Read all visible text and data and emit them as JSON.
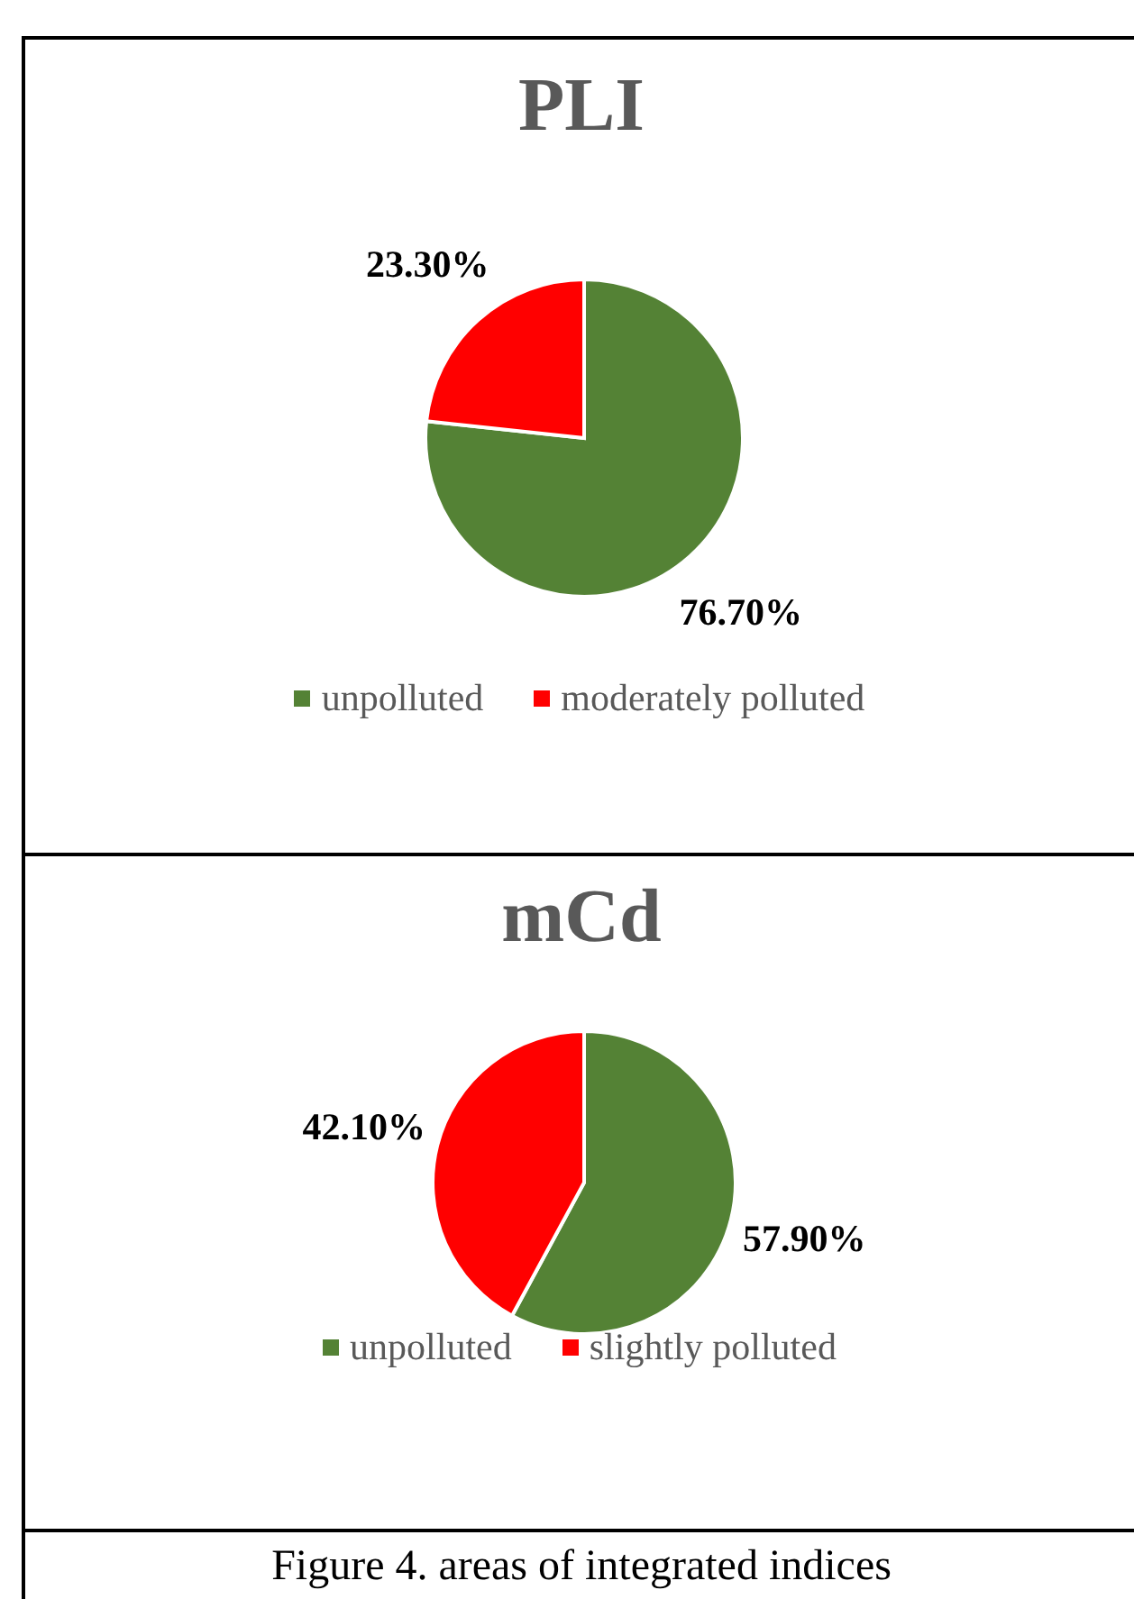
{
  "chart_data": [
    {
      "type": "pie",
      "title": "PLI",
      "categories": [
        "unpolluted",
        "moderately polluted"
      ],
      "values": [
        76.7,
        23.3
      ],
      "colors": [
        "#548235",
        "#ff0000"
      ],
      "value_labels": [
        "76.70%",
        "23.30%"
      ],
      "legend": "bottom"
    },
    {
      "type": "pie",
      "title": "mCd",
      "categories": [
        "unpolluted",
        "slightly polluted"
      ],
      "values": [
        57.9,
        42.1
      ],
      "colors": [
        "#548235",
        "#ff0000"
      ],
      "value_labels": [
        "57.90%",
        "42.10%"
      ],
      "legend": "bottom",
      "annotations": [
        "Figure 4. areas of integrated indices"
      ]
    }
  ]
}
